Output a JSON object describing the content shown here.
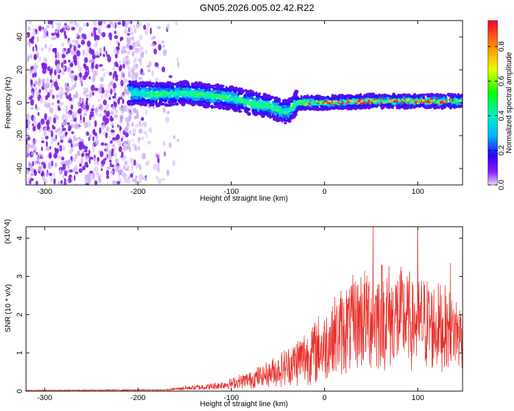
{
  "title": "GN05.2026.005.02.42.R22",
  "chart_data": [
    {
      "type": "heatmap",
      "xlabel": "Height of straight line (km)",
      "ylabel": "Frequency (Hz)",
      "xlim": [
        -320,
        148
      ],
      "ylim": [
        -50,
        50
      ],
      "xticks": [
        -300,
        -200,
        -100,
        0,
        100
      ],
      "yticks": [
        -40,
        -20,
        0,
        20,
        40
      ],
      "colorbar": {
        "label": "Normalized spectral amplitude",
        "range": [
          0.0,
          0.95
        ],
        "ticks": [
          0.0,
          0.2,
          0.4,
          0.6,
          0.8
        ],
        "colormap": "rainbow"
      },
      "band": {
        "x": [
          -210,
          -180,
          -150,
          -120,
          -100,
          -80,
          -60,
          -50,
          -40,
          -30,
          -20,
          0,
          50,
          100,
          148
        ],
        "center_hz": [
          6,
          5,
          6,
          4,
          3,
          0,
          -2,
          -4,
          -6,
          0,
          0,
          0,
          1,
          1,
          1
        ]
      },
      "noise_region_x": [
        -320,
        -175
      ]
    },
    {
      "type": "line",
      "xlabel": "Height of straight line (km)",
      "ylabel": "SNR (10 * v/v)",
      "y_multiplier": "(x10^4)",
      "xlim": [
        -320,
        148
      ],
      "ylim": [
        0,
        4.3
      ],
      "xticks": [
        -300,
        -200,
        -100,
        0,
        100
      ],
      "yticks": [
        0,
        1,
        2,
        3,
        4
      ],
      "series": [
        {
          "color": "#e8302a",
          "envelope_x": [
            -320,
            -170,
            -150,
            -120,
            -100,
            -80,
            -60,
            -40,
            -20,
            0,
            20,
            40,
            60,
            80,
            100,
            120,
            148
          ],
          "envelope_mean": [
            0.02,
            0.03,
            0.08,
            0.12,
            0.2,
            0.3,
            0.45,
            0.65,
            0.9,
            1.2,
            1.6,
            1.9,
            2.0,
            1.9,
            1.8,
            1.7,
            1.5
          ],
          "envelope_spread": [
            0.01,
            0.02,
            0.06,
            0.1,
            0.15,
            0.25,
            0.35,
            0.55,
            0.8,
            1.0,
            1.2,
            1.4,
            1.5,
            1.4,
            1.3,
            1.2,
            1.0
          ],
          "peak_points": [
            [
              52,
              4.3
            ],
            [
              100,
              4.25
            ],
            [
              135,
              3.35
            ]
          ]
        }
      ]
    }
  ]
}
